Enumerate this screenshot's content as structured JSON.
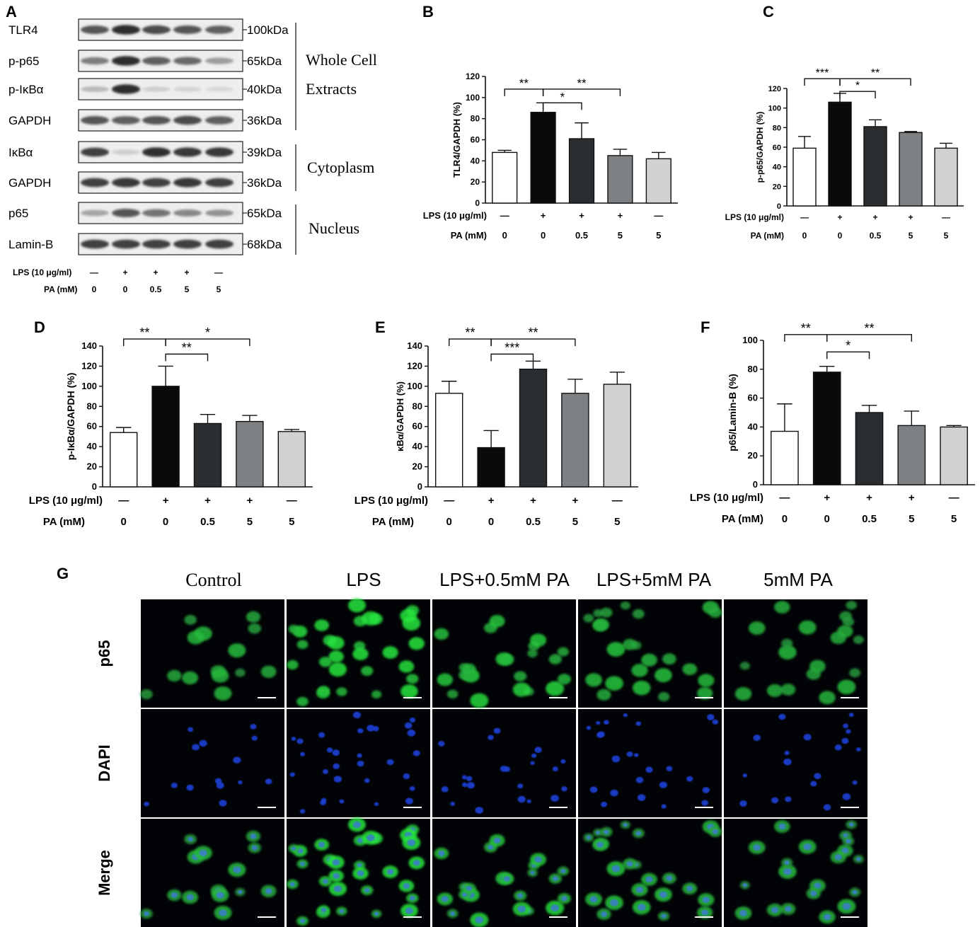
{
  "figure": {
    "panel_labels": [
      "A",
      "B",
      "C",
      "D",
      "E",
      "F",
      "G"
    ]
  },
  "blot": {
    "rows": [
      {
        "label": "TLR4",
        "size": "100kDa",
        "intensity": [
          0.75,
          0.95,
          0.8,
          0.75,
          0.7
        ]
      },
      {
        "label": "p-p65",
        "size": "65kDa",
        "intensity": [
          0.55,
          0.95,
          0.7,
          0.65,
          0.4
        ]
      },
      {
        "label": "p-IκBα",
        "size": "40kDa",
        "intensity": [
          0.25,
          0.95,
          0.15,
          0.12,
          0.1
        ]
      },
      {
        "label": "GAPDH",
        "size": "36kDa",
        "intensity": [
          0.75,
          0.7,
          0.75,
          0.8,
          0.7
        ]
      },
      {
        "label": "IκBα",
        "size": "39kDa",
        "intensity": [
          0.85,
          0.15,
          0.95,
          0.9,
          0.9
        ]
      },
      {
        "label": "GAPDH",
        "size": "36kDa",
        "intensity": [
          0.85,
          0.9,
          0.85,
          0.9,
          0.85
        ]
      },
      {
        "label": "p65",
        "size": "65kDa",
        "intensity": [
          0.35,
          0.75,
          0.6,
          0.5,
          0.45
        ]
      },
      {
        "label": "Lamin-B",
        "size": "68kDa",
        "intensity": [
          0.85,
          0.85,
          0.85,
          0.85,
          0.85
        ]
      }
    ],
    "groups": [
      {
        "label1": "Whole Cell",
        "label2": "Extracts"
      },
      {
        "label1": "Cytoplasm",
        "label2": ""
      },
      {
        "label1": "Nucleus",
        "label2": ""
      }
    ],
    "lps_label": "LPS (10 μg/ml)",
    "pa_label": "PA (mM)",
    "lps": [
      "—",
      "+",
      "+",
      "+",
      "—"
    ],
    "pa": [
      "0",
      "0",
      "0.5",
      "5",
      "5"
    ]
  },
  "chart_data": [
    {
      "panel": "B",
      "type": "bar",
      "ylabel": "TLR4/GAPDH (%)",
      "ylim": [
        0,
        120
      ],
      "yticks": [
        0,
        20,
        40,
        60,
        80,
        100,
        120
      ],
      "lps_label": "LPS (10 μg/ml)",
      "pa_label": "PA (mM)",
      "lps": [
        "—",
        "+",
        "+",
        "+",
        "—"
      ],
      "pa": [
        "0",
        "0",
        "0.5",
        "5",
        "5"
      ],
      "values": [
        48,
        86,
        61,
        45,
        42
      ],
      "errors": [
        2,
        9,
        15,
        6,
        6
      ],
      "colors": [
        "#ffffff",
        "#0a0a0a",
        "#2b2e31",
        "#7d8184",
        "#cfd1d2"
      ],
      "sig": [
        {
          "a": 0,
          "b": 1,
          "label": "**",
          "y": 108
        },
        {
          "a": 1,
          "b": 2,
          "label": "*",
          "y": 95
        },
        {
          "a": 1,
          "b": 3,
          "label": "**",
          "y": 108
        }
      ]
    },
    {
      "panel": "C",
      "type": "bar",
      "ylabel": "p-p65/GAPDH (%)",
      "ylim": [
        0,
        120
      ],
      "yticks": [
        0,
        20,
        40,
        60,
        80,
        100,
        120
      ],
      "lps_label": "LPS (10 μg/ml)",
      "pa_label": "PA (mM)",
      "lps": [
        "—",
        "+",
        "+",
        "+",
        "—"
      ],
      "pa": [
        "0",
        "0",
        "0.5",
        "5",
        "5"
      ],
      "values": [
        59,
        106,
        81,
        75,
        59
      ],
      "errors": [
        12,
        9,
        7,
        1,
        5
      ],
      "colors": [
        "#ffffff",
        "#0a0a0a",
        "#2b2e31",
        "#7d8184",
        "#cfd1d2"
      ],
      "sig": [
        {
          "a": 0,
          "b": 1,
          "label": "***",
          "y": 130
        },
        {
          "a": 1,
          "b": 2,
          "label": "*",
          "y": 117
        },
        {
          "a": 1,
          "b": 3,
          "label": "**",
          "y": 130
        }
      ]
    },
    {
      "panel": "D",
      "type": "bar",
      "ylabel": "p-IκBα/GAPDH (%)",
      "ylim": [
        0,
        140
      ],
      "yticks": [
        0,
        20,
        40,
        60,
        80,
        100,
        120,
        140
      ],
      "lps_label": "LPS (10 μg/ml)",
      "pa_label": "PA (mM)",
      "lps": [
        "—",
        "+",
        "+",
        "+",
        "—"
      ],
      "pa": [
        "0",
        "0",
        "0.5",
        "5",
        "5"
      ],
      "values": [
        54,
        100,
        63,
        65,
        55
      ],
      "errors": [
        5,
        20,
        9,
        6,
        2
      ],
      "colors": [
        "#ffffff",
        "#0a0a0a",
        "#2b2e31",
        "#7d8184",
        "#cfd1d2"
      ],
      "sig": [
        {
          "a": 0,
          "b": 1,
          "label": "**",
          "y": 147
        },
        {
          "a": 1,
          "b": 2,
          "label": "**",
          "y": 132
        },
        {
          "a": 1,
          "b": 3,
          "label": "*",
          "y": 147
        }
      ]
    },
    {
      "panel": "E",
      "type": "bar",
      "ylabel": "κBα/GAPDH (%)",
      "ylim": [
        0,
        140
      ],
      "yticks": [
        0,
        20,
        40,
        60,
        80,
        100,
        120,
        140
      ],
      "lps_label": "LPS (10 μg/ml)",
      "pa_label": "PA (mM)",
      "lps": [
        "—",
        "+",
        "+",
        "+",
        "—"
      ],
      "pa": [
        "0",
        "0",
        "0.5",
        "5",
        "5"
      ],
      "values": [
        93,
        39,
        117,
        93,
        102
      ],
      "errors": [
        12,
        17,
        8,
        14,
        12
      ],
      "colors": [
        "#ffffff",
        "#0a0a0a",
        "#2b2e31",
        "#7d8184",
        "#cfd1d2"
      ],
      "sig": [
        {
          "a": 0,
          "b": 1,
          "label": "**",
          "y": 147
        },
        {
          "a": 1,
          "b": 2,
          "label": "***",
          "y": 132
        },
        {
          "a": 1,
          "b": 3,
          "label": "**",
          "y": 147
        }
      ]
    },
    {
      "panel": "F",
      "type": "bar",
      "ylabel": "p65/Lamin-B (%)",
      "ylim": [
        0,
        100
      ],
      "yticks": [
        0,
        20,
        40,
        60,
        80,
        100
      ],
      "lps_label": "LPS (10 μg/ml)",
      "pa_label": "PA (mM)",
      "lps": [
        "—",
        "+",
        "+",
        "+",
        "—"
      ],
      "pa": [
        "0",
        "0",
        "0.5",
        "5",
        "5"
      ],
      "values": [
        37,
        78,
        50,
        41,
        40
      ],
      "errors": [
        19,
        4,
        5,
        10,
        1
      ],
      "colors": [
        "#ffffff",
        "#0a0a0a",
        "#2b2e31",
        "#7d8184",
        "#cfd1d2"
      ],
      "sig": [
        {
          "a": 0,
          "b": 1,
          "label": "**",
          "y": 104
        },
        {
          "a": 1,
          "b": 2,
          "label": "*",
          "y": 92
        },
        {
          "a": 1,
          "b": 3,
          "label": "**",
          "y": 104
        }
      ]
    }
  ],
  "micro": {
    "columns": [
      "Control",
      "LPS",
      "LPS+0.5mM PA",
      "LPS+5mM PA",
      "5mM PA"
    ],
    "rows": [
      "p65",
      "DAPI",
      "Merge"
    ],
    "cell_density": [
      14,
      30,
      22,
      24,
      20
    ],
    "green_brightness": [
      0.55,
      0.9,
      0.7,
      0.6,
      0.55
    ]
  }
}
